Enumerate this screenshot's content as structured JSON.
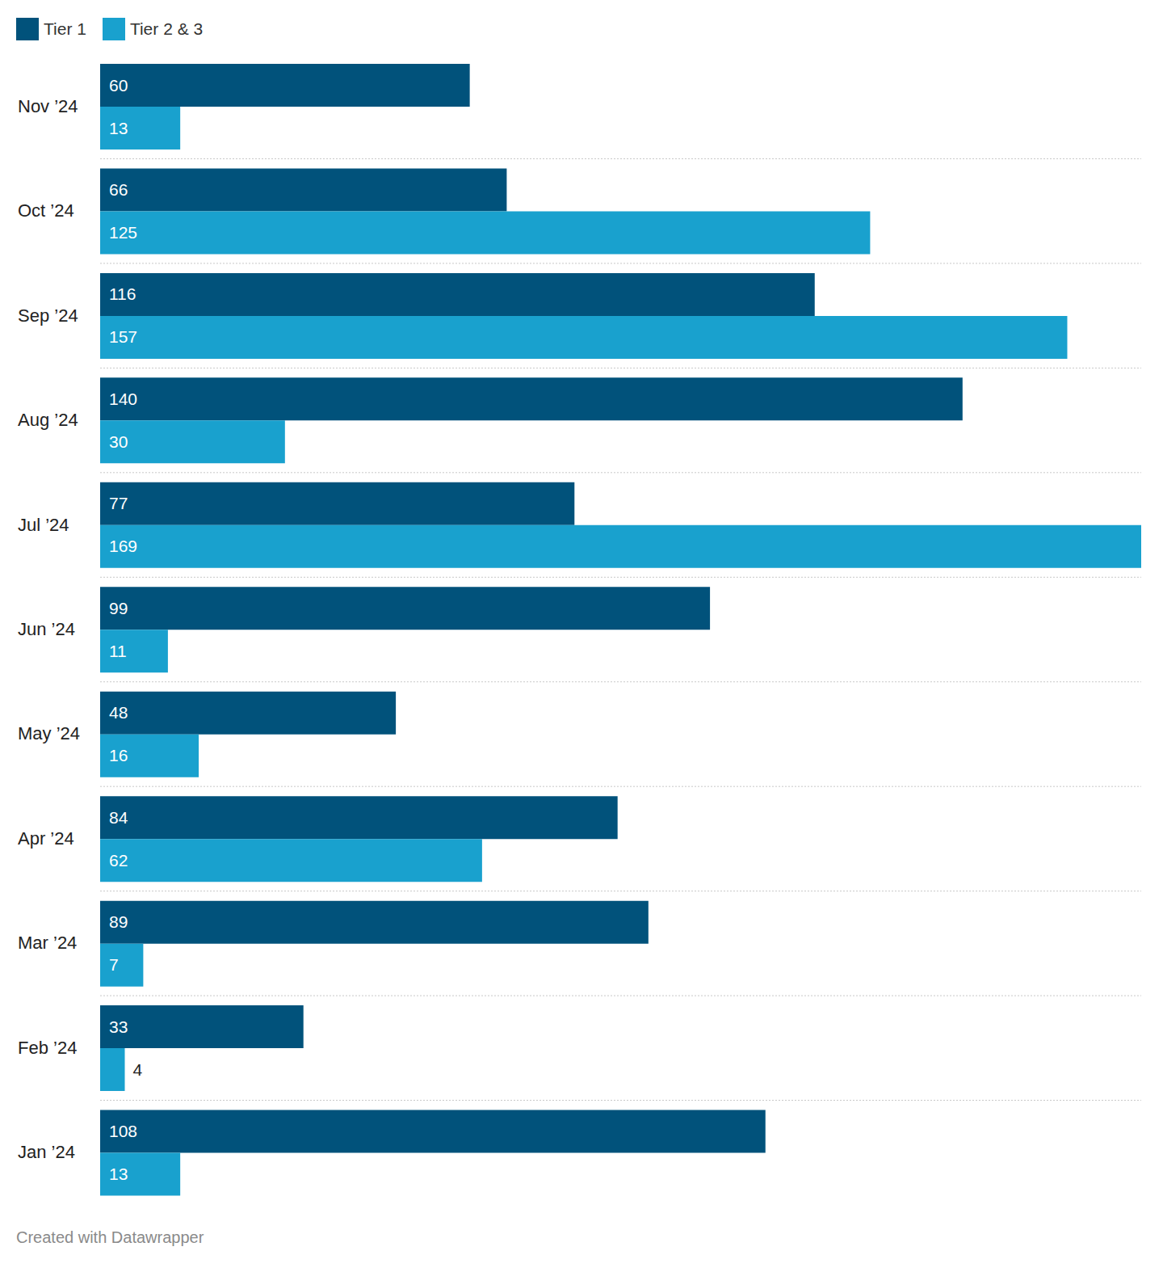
{
  "chart_data": {
    "type": "bar",
    "orientation": "horizontal",
    "categories": [
      "Nov ’24",
      "Oct ’24",
      "Sep ’24",
      "Aug ’24",
      "Jul ’24",
      "Jun ’24",
      "May ’24",
      "Apr ’24",
      "Mar ’24",
      "Feb ’24",
      "Jan ’24"
    ],
    "series": [
      {
        "name": "Tier 1",
        "color": "#01527b",
        "values": [
          60,
          66,
          116,
          140,
          77,
          99,
          48,
          84,
          89,
          33,
          108
        ]
      },
      {
        "name": "Tier 2 & 3",
        "color": "#19a1ce",
        "values": [
          13,
          125,
          157,
          30,
          169,
          11,
          16,
          62,
          7,
          4,
          13
        ]
      }
    ],
    "xlim": [
      0,
      169
    ],
    "tick_labels": "y",
    "data_labels": true,
    "grid": true,
    "legend": "top-left",
    "footer": "Created with Datawrapper"
  }
}
